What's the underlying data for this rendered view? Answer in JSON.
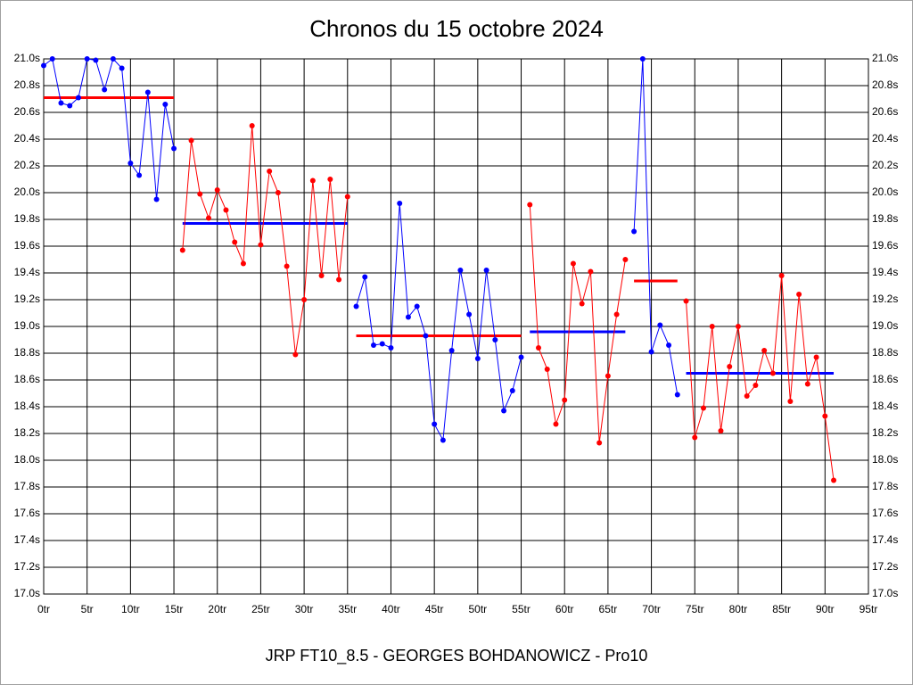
{
  "chart_data": {
    "type": "line",
    "title": "Chronos du 15 octobre 2024",
    "footer": "JRP FT10_8.5 - GEORGES BOHDANOWICZ - Pro10",
    "xlim": [
      0,
      95
    ],
    "ylim": [
      17,
      21
    ],
    "grid": true,
    "xticks": [
      {
        "value": 0,
        "label": "0tr"
      },
      {
        "value": 5,
        "label": "5tr"
      },
      {
        "value": 10,
        "label": "10tr"
      },
      {
        "value": 15,
        "label": "15tr"
      },
      {
        "value": 20,
        "label": "20tr"
      },
      {
        "value": 25,
        "label": "25tr"
      },
      {
        "value": 30,
        "label": "30tr"
      },
      {
        "value": 35,
        "label": "35tr"
      },
      {
        "value": 40,
        "label": "40tr"
      },
      {
        "value": 45,
        "label": "45tr"
      },
      {
        "value": 50,
        "label": "50tr"
      },
      {
        "value": 55,
        "label": "55tr"
      },
      {
        "value": 60,
        "label": "60tr"
      },
      {
        "value": 65,
        "label": "65tr"
      },
      {
        "value": 70,
        "label": "70tr"
      },
      {
        "value": 75,
        "label": "75tr"
      },
      {
        "value": 80,
        "label": "80tr"
      },
      {
        "value": 85,
        "label": "85tr"
      },
      {
        "value": 90,
        "label": "90tr"
      },
      {
        "value": 95,
        "label": "95tr"
      }
    ],
    "yticks": [
      {
        "value": 17.0,
        "label": "17.0s"
      },
      {
        "value": 17.2,
        "label": "17.2s"
      },
      {
        "value": 17.4,
        "label": "17.4s"
      },
      {
        "value": 17.6,
        "label": "17.6s"
      },
      {
        "value": 17.8,
        "label": "17.8s"
      },
      {
        "value": 18.0,
        "label": "18.0s"
      },
      {
        "value": 18.2,
        "label": "18.2s"
      },
      {
        "value": 18.4,
        "label": "18.4s"
      },
      {
        "value": 18.6,
        "label": "18.6s"
      },
      {
        "value": 18.8,
        "label": "18.8s"
      },
      {
        "value": 19.0,
        "label": "19.0s"
      },
      {
        "value": 19.2,
        "label": "19.2s"
      },
      {
        "value": 19.4,
        "label": "19.4s"
      },
      {
        "value": 19.6,
        "label": "19.6s"
      },
      {
        "value": 19.8,
        "label": "19.8s"
      },
      {
        "value": 20.0,
        "label": "20.0s"
      },
      {
        "value": 20.2,
        "label": "20.2s"
      },
      {
        "value": 20.4,
        "label": "20.4s"
      },
      {
        "value": 20.6,
        "label": "20.6s"
      },
      {
        "value": 20.8,
        "label": "20.8s"
      },
      {
        "value": 21.0,
        "label": "21.0s"
      }
    ],
    "series": [
      {
        "color": "#0000ff",
        "average_color": "#ff0000",
        "average": 20.71,
        "x": [
          0,
          1,
          2,
          3,
          4,
          5,
          6,
          7,
          8,
          9,
          10,
          11,
          12,
          13,
          14,
          15
        ],
        "values": [
          20.95,
          21.0,
          20.67,
          20.65,
          20.71,
          21.0,
          20.99,
          20.77,
          21.0,
          20.93,
          20.22,
          20.13,
          20.75,
          19.95,
          20.66,
          20.33
        ]
      },
      {
        "color": "#ff0000",
        "average_color": "#0000ff",
        "average": 19.77,
        "x": [
          16,
          17,
          18,
          19,
          20,
          21,
          22,
          23,
          24,
          25,
          26,
          27,
          28,
          29,
          30,
          31,
          32,
          33,
          34,
          35
        ],
        "values": [
          19.57,
          20.39,
          19.99,
          19.81,
          20.02,
          19.87,
          19.63,
          19.47,
          20.5,
          19.61,
          20.16,
          20.0,
          19.45,
          18.79,
          19.2,
          20.09,
          19.38,
          20.1,
          19.35,
          19.97
        ]
      },
      {
        "color": "#0000ff",
        "average_color": "#ff0000",
        "average": 18.93,
        "x": [
          36,
          37,
          38,
          39,
          40,
          41,
          42,
          43,
          44,
          45,
          46,
          47,
          48,
          49,
          50,
          51,
          52,
          53,
          54,
          55
        ],
        "values": [
          19.15,
          19.37,
          18.86,
          18.87,
          18.84,
          19.92,
          19.07,
          19.15,
          18.93,
          18.27,
          18.15,
          18.82,
          19.42,
          19.09,
          18.76,
          19.42,
          18.9,
          18.37,
          18.52,
          18.77
        ]
      },
      {
        "color": "#ff0000",
        "average_color": "#0000ff",
        "average": 18.96,
        "x": [
          56,
          57,
          58,
          59,
          60,
          61,
          62,
          63,
          64,
          65,
          66,
          67
        ],
        "values": [
          19.91,
          18.84,
          18.68,
          18.27,
          18.45,
          19.47,
          19.17,
          19.41,
          18.13,
          18.63,
          19.09,
          19.5
        ]
      },
      {
        "color": "#0000ff",
        "average_color": "#ff0000",
        "average": 19.34,
        "x": [
          68,
          69,
          70,
          71,
          72,
          73
        ],
        "values": [
          19.71,
          21.0,
          18.81,
          19.01,
          18.86,
          18.49
        ]
      },
      {
        "color": "#ff0000",
        "average_color": "#0000ff",
        "average": 18.65,
        "x": [
          74,
          75,
          76,
          77,
          78,
          79,
          80,
          81,
          82,
          83,
          84,
          85,
          86,
          87,
          88,
          89,
          90,
          91
        ],
        "values": [
          19.19,
          18.17,
          18.39,
          19.0,
          18.22,
          18.7,
          19.0,
          18.48,
          18.56,
          18.82,
          18.65,
          19.38,
          18.44,
          19.24,
          18.57,
          18.77,
          18.33,
          17.85
        ]
      }
    ]
  }
}
